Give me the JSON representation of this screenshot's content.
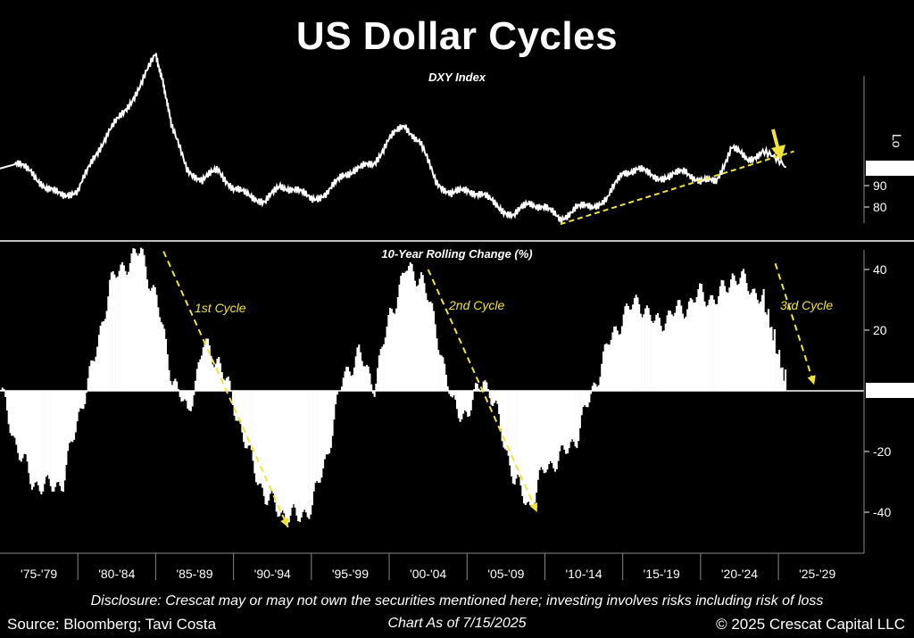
{
  "header": {
    "title": "US Dollar Cycles"
  },
  "footer": {
    "disclosure": "Disclosure: Crescat may or may not own the securities mentioned here; investing involves risks including risk of loss",
    "source": "Source: Bloomberg; Tavi Costa",
    "as_of": "Chart As of 7/15/2025",
    "copyright": "© 2025 Crescat Capital LLC"
  },
  "colors": {
    "background": "#000000",
    "line": "#ffffff",
    "accent": "#f2e33a"
  },
  "chart_data": [
    {
      "type": "line",
      "title": "DXY Index",
      "axis_side_label": "Lo",
      "y_ticks": [
        80,
        90
      ],
      "last_value": "98.630",
      "x_tick_labels": [
        "'75-'79",
        "'80-'84",
        "'85-'89",
        "'90-'94",
        "'95-'99",
        "'00-'04",
        "'05-'09",
        "'10-'14",
        "'15-'19",
        "'20-'24",
        "'25-'29"
      ],
      "series": [
        {
          "x": [
            1975,
            1976,
            1977,
            1978,
            1979,
            1980,
            1981,
            1982,
            1983,
            1984,
            1985,
            1985.5,
            1986,
            1987,
            1988,
            1989,
            1990,
            1991,
            1992,
            1993,
            1994,
            1995,
            1996,
            1997,
            1998,
            1999,
            2000,
            2001,
            2002,
            2003,
            2004,
            2005,
            2006,
            2007,
            2008,
            2009,
            2010,
            2011,
            2012,
            2013,
            2014,
            2015,
            2016,
            2017,
            2018,
            2019,
            2020,
            2021,
            2022,
            2023,
            2024,
            2025.5
          ],
          "values": [
            98,
            100,
            97,
            88,
            86,
            87,
            103,
            115,
            125,
            136,
            152,
            138,
            118,
            98,
            92,
            98,
            88,
            86,
            82,
            90,
            88,
            84,
            86,
            95,
            98,
            100,
            112,
            118,
            110,
            92,
            86,
            88,
            86,
            80,
            76,
            82,
            80,
            74,
            80,
            80,
            84,
            96,
            98,
            94,
            94,
            97,
            92,
            92,
            108,
            102,
            106,
            98.63
          ]
        }
      ],
      "trendline": {
        "x": [
          2011,
          2026
        ],
        "values": [
          72,
          106
        ]
      }
    },
    {
      "type": "area",
      "title": "10-Year Rolling Change (%)",
      "y_ticks": [
        40,
        20,
        -20,
        -40
      ],
      "last_value": "1.46",
      "series": [
        {
          "x": [
            1975,
            1976,
            1977,
            1978,
            1979,
            1980,
            1981,
            1982,
            1983,
            1984,
            1985,
            1986,
            1987,
            1988,
            1989,
            1990,
            1991,
            1992,
            1993,
            1994,
            1995,
            1996,
            1997,
            1998,
            1999,
            2000,
            2001,
            2002,
            2003,
            2004,
            2005,
            2006,
            2007,
            2008,
            2009,
            2010,
            2011,
            2012,
            2013,
            2014,
            2015,
            2016,
            2017,
            2018,
            2019,
            2020,
            2021,
            2022,
            2023,
            2024,
            2025.5
          ],
          "values": [
            0,
            -18,
            -30,
            -32,
            -30,
            -8,
            10,
            35,
            42,
            46,
            30,
            5,
            -8,
            15,
            10,
            -5,
            -22,
            -35,
            -40,
            -42,
            -38,
            -20,
            5,
            12,
            2,
            25,
            40,
            38,
            20,
            -5,
            -8,
            5,
            -10,
            -30,
            -38,
            -25,
            -22,
            -15,
            0,
            15,
            25,
            30,
            22,
            25,
            28,
            32,
            30,
            38,
            35,
            30,
            1.46
          ]
        }
      ],
      "annotations": [
        {
          "text": "1st Cycle",
          "arrow_from": [
            1985.5,
            46
          ],
          "arrow_to": [
            1993.5,
            -45
          ]
        },
        {
          "text": "2nd Cycle",
          "arrow_from": [
            2002.5,
            40
          ],
          "arrow_to": [
            2009.5,
            -40
          ]
        },
        {
          "text": "3rd Cycle",
          "arrow_from": [
            2024.8,
            42
          ],
          "arrow_to": [
            2027.3,
            2
          ]
        }
      ]
    }
  ]
}
